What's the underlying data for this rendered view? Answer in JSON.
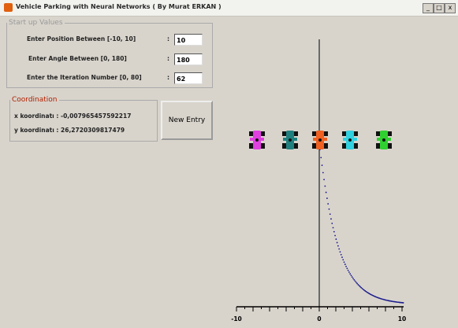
{
  "window": {
    "title": "Vehicle Parking with Neural Networks ( By Murat ERKAN )"
  },
  "startup": {
    "legend": "Start up Values",
    "fields": [
      {
        "label": "Enter Position Between [-10, 10]",
        "colon": ":",
        "value": "10"
      },
      {
        "label": "Enter Angle Between [0, 180]",
        "colon": ":",
        "value": "180"
      },
      {
        "label": "Enter the Iteration Number [0, 80]",
        "colon": ":",
        "value": "62"
      }
    ]
  },
  "coordination": {
    "legend": "Coordination",
    "x_text": "x koordinatı : -0,007965457592217",
    "y_text": "y koordinatı : 26,2720309817479"
  },
  "button": "New Entry",
  "axis_labels": [
    "-10",
    "0",
    "10"
  ]
}
